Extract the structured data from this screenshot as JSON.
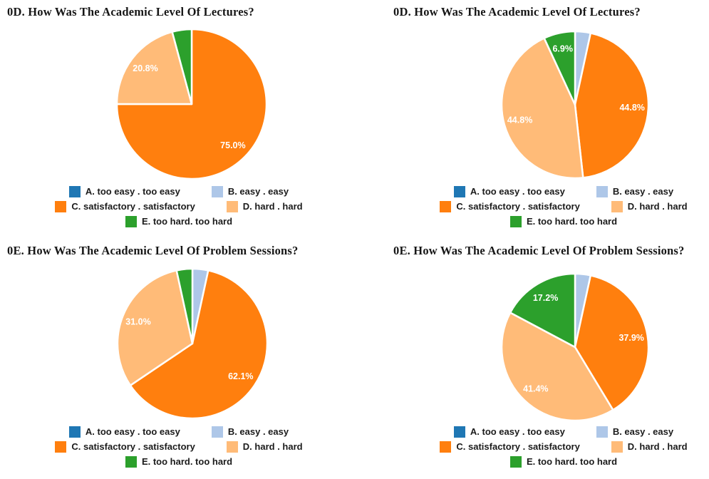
{
  "background_color": "#ffffff",
  "legend": {
    "position": "bottom",
    "entries": [
      {
        "key": "A",
        "label": "A. too easy . too easy",
        "color": "#1F77B4"
      },
      {
        "key": "B",
        "label": "B. easy . easy",
        "color": "#AEC7E8"
      },
      {
        "key": "C",
        "label": "C. satisfactory . satisfactory",
        "color": "#FF7F0E"
      },
      {
        "key": "D",
        "label": "D. hard . hard",
        "color": "#FFBB78"
      },
      {
        "key": "E",
        "label": "E. too hard. too hard",
        "color": "#2CA02C"
      }
    ],
    "rows": [
      [
        "A",
        "B"
      ],
      [
        "C",
        "D"
      ],
      [
        "E"
      ]
    ]
  },
  "chart_data": [
    {
      "type": "pie",
      "title": "0D. How Was The Academic Level Of Lectures?",
      "categories": [
        "A. too easy . too easy",
        "B. easy . easy",
        "C. satisfactory . satisfactory",
        "D. hard . hard",
        "E. too hard. too hard"
      ],
      "values": [
        0,
        0,
        75.0,
        20.8,
        4.2
      ],
      "slice_labels": [
        "",
        "",
        "75.0%",
        "20.8%",
        ""
      ],
      "start_angle_deg": 0,
      "direction": "clockwise",
      "label_color": "#ffffff",
      "legend_position": "bottom"
    },
    {
      "type": "pie",
      "title": "0D. How Was The Academic Level Of Lectures?",
      "categories": [
        "A. too easy . too easy",
        "B. easy . easy",
        "C. satisfactory . satisfactory",
        "D. hard . hard",
        "E. too hard. too hard"
      ],
      "values": [
        0,
        3.4,
        44.8,
        44.8,
        6.9
      ],
      "slice_labels": [
        "",
        "",
        "44.8%",
        "44.8%",
        "6.9%"
      ],
      "start_angle_deg": 0,
      "direction": "clockwise",
      "label_color": "#ffffff",
      "legend_position": "bottom"
    },
    {
      "type": "pie",
      "title": "0E. How Was The Academic Level Of Problem Sessions?",
      "categories": [
        "A. too easy . too easy",
        "B. easy . easy",
        "C. satisfactory . satisfactory",
        "D. hard . hard",
        "E. too hard. too hard"
      ],
      "values": [
        0,
        3.4,
        62.1,
        31.0,
        3.4
      ],
      "slice_labels": [
        "",
        "",
        "62.1%",
        "31.0%",
        ""
      ],
      "start_angle_deg": 0,
      "direction": "clockwise",
      "label_color": "#ffffff",
      "legend_position": "bottom"
    },
    {
      "type": "pie",
      "title": "0E. How Was The Academic Level Of Problem Sessions?",
      "categories": [
        "A. too easy . too easy",
        "B. easy . easy",
        "C. satisfactory . satisfactory",
        "D. hard . hard",
        "E. too hard. too hard"
      ],
      "values": [
        0,
        3.4,
        37.9,
        41.4,
        17.2
      ],
      "slice_labels": [
        "",
        "",
        "37.9%",
        "41.4%",
        "17.2%"
      ],
      "start_angle_deg": 0,
      "direction": "clockwise",
      "label_color": "#ffffff",
      "legend_position": "bottom"
    }
  ]
}
